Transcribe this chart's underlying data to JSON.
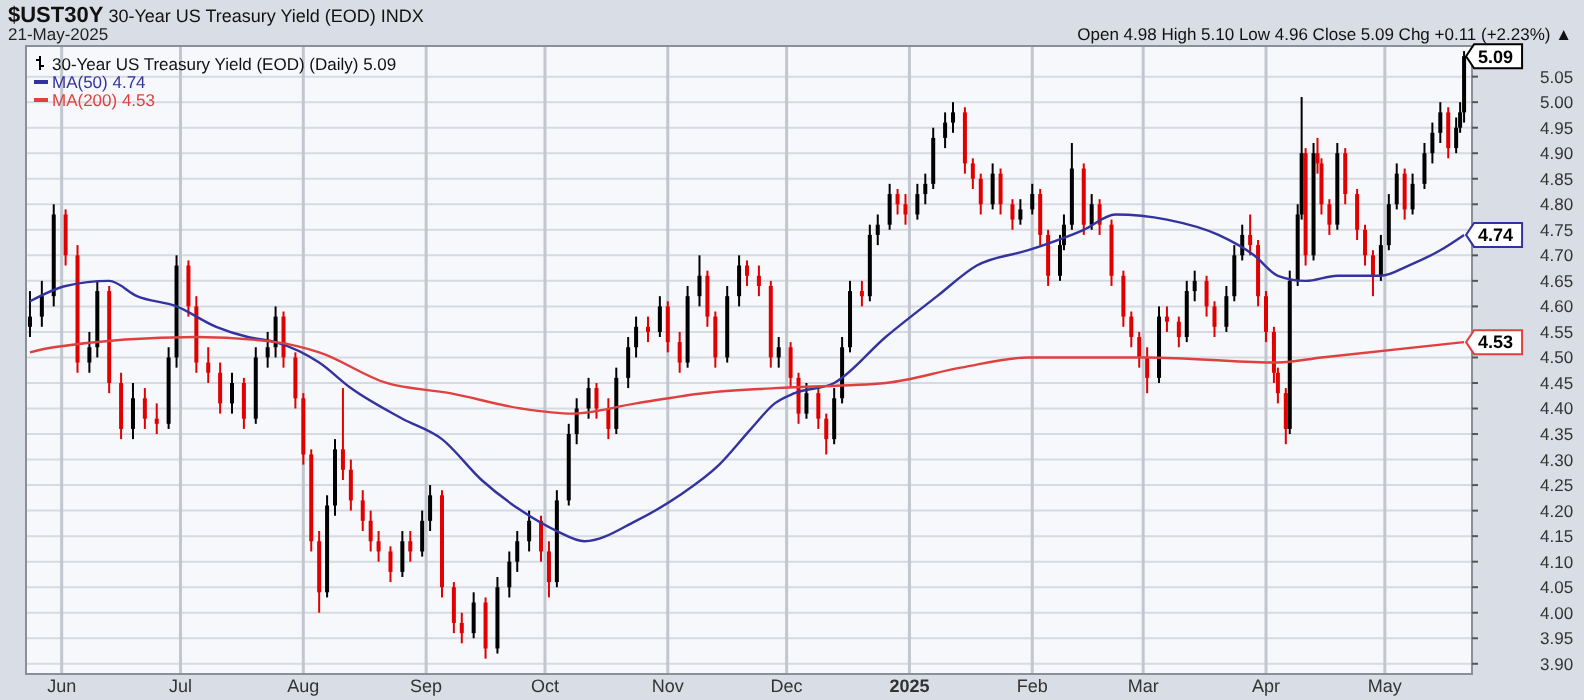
{
  "chart_data": {
    "type": "candlestick",
    "title": "$UST30Y 30-Year US Treasury Yield (EOD) INDX",
    "subtitle": "21-May-2025",
    "annotations": [
      "Open 4.98 High 5.10 Low 4.96 Close 5.09 Chg +0.11 (+2.23%) ▲",
      {
        "text": "5.09",
        "x": "2025-05-21",
        "y": 5.09
      },
      {
        "text": "4.74",
        "x": "2025-05-21",
        "y": 4.74
      },
      {
        "text": "4.53",
        "x": "2025-05-21",
        "y": 4.53
      }
    ],
    "xlim": [
      "2024-05-23",
      "2025-05-23"
    ],
    "xticks": [
      {
        "value": "2024-06-01",
        "label": "Jun"
      },
      {
        "value": "2024-07-01",
        "label": "Jul"
      },
      {
        "value": "2024-08-01",
        "label": "Aug"
      },
      {
        "value": "2024-09-01",
        "label": "Sep"
      },
      {
        "value": "2024-10-01",
        "label": "Oct"
      },
      {
        "value": "2024-11-01",
        "label": "Nov"
      },
      {
        "value": "2024-12-01",
        "label": "Dec"
      },
      {
        "value": "2025-01-01",
        "label": "2025"
      },
      {
        "value": "2025-02-01",
        "label": "Feb"
      },
      {
        "value": "2025-03-01",
        "label": "Mar"
      },
      {
        "value": "2025-04-01",
        "label": "Apr"
      },
      {
        "value": "2025-05-01",
        "label": "May"
      }
    ],
    "ylim": [
      3.88,
      5.11
    ],
    "yticks": [
      {
        "value": 3.9,
        "label": "3.90"
      },
      3.95,
      {
        "value": 4.0,
        "label": "4.00"
      },
      4.05,
      {
        "value": 4.1,
        "label": "4.10"
      },
      4.15,
      {
        "value": 4.2,
        "label": "4.20"
      },
      4.25,
      {
        "value": 4.3,
        "label": "4.30"
      },
      4.35,
      {
        "value": 4.4,
        "label": "4.40"
      },
      4.45,
      {
        "value": 4.5,
        "label": "4.50"
      },
      4.55,
      {
        "value": 4.6,
        "label": "4.60"
      },
      4.65,
      {
        "value": 4.7,
        "label": "4.70"
      },
      4.75,
      {
        "value": 4.8,
        "label": "4.80"
      },
      4.85,
      {
        "value": 4.9,
        "label": "4.90"
      },
      4.95,
      {
        "value": 5.0,
        "label": "5.00"
      },
      5.05
    ],
    "grid": true,
    "legend": "top left",
    "x": [
      "2024-05-24",
      "2024-05-27",
      "2024-05-30",
      "2024-06-02",
      "2024-06-05",
      "2024-06-08",
      "2024-06-10",
      "2024-06-13",
      "2024-06-16",
      "2024-06-19",
      "2024-06-22",
      "2024-06-25",
      "2024-06-28",
      "2024-06-30",
      "2024-07-03",
      "2024-07-05",
      "2024-07-08",
      "2024-07-11",
      "2024-07-14",
      "2024-07-17",
      "2024-07-20",
      "2024-07-23",
      "2024-07-25",
      "2024-07-27",
      "2024-07-30",
      "2024-08-01",
      "2024-08-03",
      "2024-08-05",
      "2024-08-07",
      "2024-08-09",
      "2024-08-11",
      "2024-08-13",
      "2024-08-16",
      "2024-08-18",
      "2024-08-20",
      "2024-08-23",
      "2024-08-26",
      "2024-08-28",
      "2024-08-31",
      "2024-09-02",
      "2024-09-05",
      "2024-09-08",
      "2024-09-10",
      "2024-09-13",
      "2024-09-16",
      "2024-09-19",
      "2024-09-22",
      "2024-09-24",
      "2024-09-27",
      "2024-09-30",
      "2024-10-02",
      "2024-10-04",
      "2024-10-07",
      "2024-10-09",
      "2024-10-12",
      "2024-10-14",
      "2024-10-17",
      "2024-10-19",
      "2024-10-22",
      "2024-10-24",
      "2024-10-27",
      "2024-10-30",
      "2024-11-01",
      "2024-11-04",
      "2024-11-06",
      "2024-11-09",
      "2024-11-11",
      "2024-11-13",
      "2024-11-16",
      "2024-11-19",
      "2024-11-21",
      "2024-11-24",
      "2024-11-27",
      "2024-11-29",
      "2024-12-02",
      "2024-12-04",
      "2024-12-06",
      "2024-12-09",
      "2024-12-11",
      "2024-12-13",
      "2024-12-15",
      "2024-12-17",
      "2024-12-20",
      "2024-12-22",
      "2024-12-24",
      "2024-12-27",
      "2024-12-29",
      "2024-12-31",
      "2025-01-03",
      "2025-01-05",
      "2025-01-07",
      "2025-01-10",
      "2025-01-12",
      "2025-01-15",
      "2025-01-17",
      "2025-01-19",
      "2025-01-22",
      "2025-01-24",
      "2025-01-27",
      "2025-01-29",
      "2025-02-01",
      "2025-02-03",
      "2025-02-05",
      "2025-02-08",
      "2025-02-09",
      "2025-02-11",
      "2025-02-14",
      "2025-02-16",
      "2025-02-18",
      "2025-02-21",
      "2025-02-24",
      "2025-02-26",
      "2025-02-28",
      "2025-03-02",
      "2025-03-05",
      "2025-03-07",
      "2025-03-10",
      "2025-03-12",
      "2025-03-14",
      "2025-03-17",
      "2025-03-19",
      "2025-03-22",
      "2025-03-24",
      "2025-03-26",
      "2025-03-28",
      "2025-03-30",
      "2025-04-01",
      "2025-04-03",
      "2025-04-04",
      "2025-04-06",
      "2025-04-07",
      "2025-04-09",
      "2025-04-10",
      "2025-04-11",
      "2025-04-13",
      "2025-04-14",
      "2025-04-15",
      "2025-04-17",
      "2025-04-19",
      "2025-04-21",
      "2025-04-24",
      "2025-04-26",
      "2025-04-28",
      "2025-04-30",
      "2025-05-02",
      "2025-05-04",
      "2025-05-06",
      "2025-05-08",
      "2025-05-11",
      "2025-05-13",
      "2025-05-15",
      "2025-05-17",
      "2025-05-19",
      "2025-05-20",
      "2025-05-21"
    ],
    "series": [
      {
        "name": "30-Year US Treasury Yield (EOD) (Daily) 5.09",
        "color": "#000000",
        "colors": [
          "#000000",
          "#000000",
          "#000000",
          "#e00000",
          "#e00000",
          "#000000",
          "#000000",
          "#e00000",
          "#e00000",
          "#000000",
          "#e00000",
          "#e00000",
          "#000000",
          "#000000",
          "#e00000",
          "#e00000",
          "#e00000",
          "#e00000",
          "#000000",
          "#e00000",
          "#000000",
          "#000000",
          "#000000",
          "#e00000",
          "#e00000",
          "#e00000",
          "#e00000",
          "#e00000",
          "#000000",
          "#000000",
          "#e00000",
          "#e00000",
          "#e00000",
          "#e00000",
          "#e00000",
          "#e00000",
          "#000000",
          "#e00000",
          "#000000",
          "#000000",
          "#e00000",
          "#e00000",
          "#e00000",
          "#000000",
          "#e00000",
          "#000000",
          "#000000",
          "#000000",
          "#000000",
          "#e00000",
          "#e00000",
          "#000000",
          "#000000",
          "#000000",
          "#000000",
          "#e00000",
          "#e00000",
          "#000000",
          "#000000",
          "#000000",
          "#e00000",
          "#000000",
          "#e00000",
          "#e00000",
          "#000000",
          "#000000",
          "#e00000",
          "#e00000",
          "#000000",
          "#000000",
          "#e00000",
          "#e00000",
          "#e00000",
          "#000000",
          "#e00000",
          "#e00000",
          "#000000",
          "#e00000",
          "#e00000",
          "#000000",
          "#000000",
          "#000000",
          "#e00000",
          "#000000",
          "#000000",
          "#000000",
          "#e00000",
          "#e00000",
          "#000000",
          "#000000",
          "#000000",
          "#000000",
          "#000000",
          "#e00000",
          "#e00000",
          "#e00000",
          "#000000",
          "#e00000",
          "#e00000",
          "#000000",
          "#000000",
          "#e00000",
          "#e00000",
          "#000000",
          "#000000",
          "#000000",
          "#e00000",
          "#000000",
          "#e00000",
          "#e00000",
          "#e00000",
          "#e00000",
          "#e00000",
          "#e00000",
          "#000000",
          "#e00000",
          "#e00000",
          "#000000",
          "#000000",
          "#e00000",
          "#e00000",
          "#000000",
          "#000000",
          "#000000",
          "#e00000",
          "#e00000",
          "#e00000",
          "#e00000",
          "#e00000",
          "#e00000",
          "#000000",
          "#000000",
          "#000000",
          "#e00000",
          "#000000",
          "#e00000",
          "#e00000",
          "#e00000",
          "#000000",
          "#e00000",
          "#e00000",
          "#e00000",
          "#e00000",
          "#000000",
          "#000000",
          "#000000",
          "#e00000",
          "#000000",
          "#000000",
          "#000000",
          "#000000",
          "#e00000",
          "#000000",
          "#000000",
          "#000000"
        ],
        "ohlc": [
          [
            4.56,
            4.63,
            4.54,
            4.58
          ],
          [
            4.58,
            4.65,
            4.56,
            4.62
          ],
          [
            4.62,
            4.8,
            4.6,
            4.78
          ],
          [
            4.78,
            4.79,
            4.68,
            4.7
          ],
          [
            4.7,
            4.72,
            4.47,
            4.49
          ],
          [
            4.49,
            4.55,
            4.47,
            4.52
          ],
          [
            4.52,
            4.65,
            4.5,
            4.63
          ],
          [
            4.63,
            4.64,
            4.43,
            4.45
          ],
          [
            4.45,
            4.47,
            4.34,
            4.36
          ],
          [
            4.36,
            4.45,
            4.34,
            4.42
          ],
          [
            4.42,
            4.44,
            4.36,
            4.38
          ],
          [
            4.38,
            4.41,
            4.35,
            4.37
          ],
          [
            4.37,
            4.52,
            4.36,
            4.5
          ],
          [
            4.5,
            4.7,
            4.48,
            4.68
          ],
          [
            4.68,
            4.69,
            4.58,
            4.6
          ],
          [
            4.6,
            4.62,
            4.47,
            4.49
          ],
          [
            4.49,
            4.52,
            4.45,
            4.47
          ],
          [
            4.47,
            4.49,
            4.39,
            4.41
          ],
          [
            4.41,
            4.47,
            4.39,
            4.45
          ],
          [
            4.45,
            4.46,
            4.36,
            4.38
          ],
          [
            4.38,
            4.52,
            4.37,
            4.5
          ],
          [
            4.5,
            4.55,
            4.48,
            4.52
          ],
          [
            4.52,
            4.6,
            4.5,
            4.58
          ],
          [
            4.58,
            4.59,
            4.48,
            4.5
          ],
          [
            4.5,
            4.51,
            4.4,
            4.42
          ],
          [
            4.42,
            4.43,
            4.29,
            4.31
          ],
          [
            4.31,
            4.32,
            4.12,
            4.14
          ],
          [
            4.14,
            4.16,
            4.0,
            4.04
          ],
          [
            4.04,
            4.23,
            4.03,
            4.21
          ],
          [
            4.21,
            4.34,
            4.19,
            4.32
          ],
          [
            4.32,
            4.44,
            4.26,
            4.28
          ],
          [
            4.28,
            4.3,
            4.2,
            4.22
          ],
          [
            4.22,
            4.24,
            4.16,
            4.18
          ],
          [
            4.18,
            4.2,
            4.12,
            4.14
          ],
          [
            4.14,
            4.16,
            4.1,
            4.12
          ],
          [
            4.12,
            4.13,
            4.06,
            4.08
          ],
          [
            4.08,
            4.16,
            4.07,
            4.14
          ],
          [
            4.14,
            4.16,
            4.1,
            4.12
          ],
          [
            4.12,
            4.2,
            4.11,
            4.18
          ],
          [
            4.18,
            4.25,
            4.16,
            4.23
          ],
          [
            4.23,
            4.24,
            4.03,
            4.05
          ],
          [
            4.05,
            4.06,
            3.96,
            3.98
          ],
          [
            3.98,
            4.0,
            3.94,
            3.96
          ],
          [
            3.96,
            4.04,
            3.95,
            4.02
          ],
          [
            4.02,
            4.03,
            3.91,
            3.93
          ],
          [
            3.93,
            4.07,
            3.92,
            4.05
          ],
          [
            4.05,
            4.12,
            4.03,
            4.1
          ],
          [
            4.1,
            4.16,
            4.08,
            4.14
          ],
          [
            4.14,
            4.2,
            4.12,
            4.18
          ],
          [
            4.18,
            4.19,
            4.1,
            4.12
          ],
          [
            4.12,
            4.14,
            4.03,
            4.06
          ],
          [
            4.06,
            4.24,
            4.05,
            4.22
          ],
          [
            4.22,
            4.37,
            4.21,
            4.35
          ],
          [
            4.35,
            4.42,
            4.33,
            4.4
          ],
          [
            4.4,
            4.46,
            4.38,
            4.44
          ],
          [
            4.44,
            4.45,
            4.38,
            4.4
          ],
          [
            4.4,
            4.42,
            4.34,
            4.36
          ],
          [
            4.36,
            4.48,
            4.35,
            4.46
          ],
          [
            4.46,
            4.54,
            4.44,
            4.52
          ],
          [
            4.52,
            4.58,
            4.5,
            4.56
          ],
          [
            4.56,
            4.58,
            4.53,
            4.55
          ],
          [
            4.55,
            4.62,
            4.54,
            4.6
          ],
          [
            4.6,
            4.61,
            4.51,
            4.53
          ],
          [
            4.53,
            4.55,
            4.47,
            4.49
          ],
          [
            4.49,
            4.64,
            4.48,
            4.62
          ],
          [
            4.62,
            4.7,
            4.6,
            4.66
          ],
          [
            4.66,
            4.67,
            4.56,
            4.58
          ],
          [
            4.58,
            4.59,
            4.48,
            4.5
          ],
          [
            4.5,
            4.64,
            4.49,
            4.62
          ],
          [
            4.62,
            4.7,
            4.6,
            4.68
          ],
          [
            4.68,
            4.69,
            4.64,
            4.66
          ],
          [
            4.66,
            4.68,
            4.62,
            4.64
          ],
          [
            4.64,
            4.65,
            4.48,
            4.5
          ],
          [
            4.5,
            4.54,
            4.48,
            4.52
          ],
          [
            4.52,
            4.53,
            4.44,
            4.46
          ],
          [
            4.46,
            4.47,
            4.37,
            4.39
          ],
          [
            4.39,
            4.45,
            4.38,
            4.43
          ],
          [
            4.43,
            4.44,
            4.36,
            4.38
          ],
          [
            4.38,
            4.39,
            4.31,
            4.34
          ],
          [
            4.34,
            4.44,
            4.33,
            4.42
          ],
          [
            4.42,
            4.54,
            4.41,
            4.52
          ],
          [
            4.52,
            4.65,
            4.51,
            4.63
          ],
          [
            4.63,
            4.65,
            4.6,
            4.62
          ],
          [
            4.62,
            4.76,
            4.61,
            4.74
          ],
          [
            4.74,
            4.78,
            4.72,
            4.76
          ],
          [
            4.76,
            4.84,
            4.75,
            4.82
          ],
          [
            4.82,
            4.83,
            4.78,
            4.8
          ],
          [
            4.8,
            4.82,
            4.76,
            4.78
          ],
          [
            4.78,
            4.84,
            4.77,
            4.82
          ],
          [
            4.82,
            4.86,
            4.8,
            4.84
          ],
          [
            4.84,
            4.95,
            4.83,
            4.93
          ],
          [
            4.93,
            4.98,
            4.91,
            4.96
          ],
          [
            4.96,
            5.0,
            4.94,
            4.98
          ],
          [
            4.98,
            4.99,
            4.86,
            4.88
          ],
          [
            4.88,
            4.89,
            4.83,
            4.85
          ],
          [
            4.85,
            4.86,
            4.78,
            4.8
          ],
          [
            4.8,
            4.88,
            4.79,
            4.86
          ],
          [
            4.86,
            4.87,
            4.78,
            4.8
          ],
          [
            4.8,
            4.81,
            4.75,
            4.77
          ],
          [
            4.77,
            4.81,
            4.76,
            4.79
          ],
          [
            4.79,
            4.84,
            4.78,
            4.82
          ],
          [
            4.82,
            4.83,
            4.72,
            4.74
          ],
          [
            4.74,
            4.75,
            4.64,
            4.66
          ],
          [
            4.66,
            4.74,
            4.65,
            4.72
          ],
          [
            4.72,
            4.78,
            4.71,
            4.76
          ],
          [
            4.76,
            4.92,
            4.75,
            4.87
          ],
          [
            4.87,
            4.88,
            4.74,
            4.76
          ],
          [
            4.76,
            4.82,
            4.75,
            4.8
          ],
          [
            4.8,
            4.81,
            4.74,
            4.76
          ],
          [
            4.76,
            4.77,
            4.64,
            4.66
          ],
          [
            4.66,
            4.67,
            4.56,
            4.58
          ],
          [
            4.58,
            4.59,
            4.52,
            4.54
          ],
          [
            4.54,
            4.55,
            4.48,
            4.5
          ],
          [
            4.5,
            4.52,
            4.43,
            4.46
          ],
          [
            4.46,
            4.6,
            4.45,
            4.58
          ],
          [
            4.58,
            4.6,
            4.55,
            4.57
          ],
          [
            4.57,
            4.58,
            4.52,
            4.54
          ],
          [
            4.54,
            4.65,
            4.53,
            4.63
          ],
          [
            4.63,
            4.67,
            4.61,
            4.65
          ],
          [
            4.65,
            4.66,
            4.58,
            4.6
          ],
          [
            4.6,
            4.61,
            4.54,
            4.56
          ],
          [
            4.56,
            4.64,
            4.55,
            4.62
          ],
          [
            4.62,
            4.72,
            4.61,
            4.7
          ],
          [
            4.7,
            4.76,
            4.69,
            4.74
          ],
          [
            4.74,
            4.78,
            4.7,
            4.72
          ],
          [
            4.72,
            4.73,
            4.6,
            4.62
          ],
          [
            4.62,
            4.63,
            4.53,
            4.55
          ],
          [
            4.55,
            4.56,
            4.45,
            4.47
          ],
          [
            4.47,
            4.48,
            4.41,
            4.43
          ],
          [
            4.43,
            4.44,
            4.33,
            4.36
          ],
          [
            4.36,
            4.67,
            4.35,
            4.65
          ],
          [
            4.65,
            4.8,
            4.64,
            4.78
          ],
          [
            4.78,
            5.01,
            4.77,
            4.9
          ],
          [
            4.9,
            4.91,
            4.68,
            4.7
          ],
          [
            4.7,
            4.92,
            4.69,
            4.9
          ],
          [
            4.9,
            4.93,
            4.86,
            4.88
          ],
          [
            4.88,
            4.89,
            4.78,
            4.8
          ],
          [
            4.8,
            4.81,
            4.74,
            4.76
          ],
          [
            4.76,
            4.92,
            4.75,
            4.9
          ],
          [
            4.9,
            4.91,
            4.8,
            4.82
          ],
          [
            4.82,
            4.83,
            4.73,
            4.75
          ],
          [
            4.75,
            4.76,
            4.68,
            4.7
          ],
          [
            4.7,
            4.71,
            4.62,
            4.66
          ],
          [
            4.66,
            4.74,
            4.65,
            4.72
          ],
          [
            4.72,
            4.82,
            4.71,
            4.8
          ],
          [
            4.8,
            4.88,
            4.79,
            4.86
          ],
          [
            4.86,
            4.87,
            4.77,
            4.79
          ],
          [
            4.79,
            4.86,
            4.78,
            4.84
          ],
          [
            4.84,
            4.92,
            4.83,
            4.9
          ],
          [
            4.9,
            4.96,
            4.88,
            4.94
          ],
          [
            4.94,
            5.0,
            4.92,
            4.98
          ],
          [
            4.98,
            4.99,
            4.89,
            4.91
          ],
          [
            4.91,
            4.97,
            4.9,
            4.95
          ],
          [
            4.95,
            5.0,
            4.94,
            4.98
          ],
          [
            4.98,
            5.1,
            4.96,
            5.09
          ]
        ]
      },
      {
        "type": "line",
        "name": "MA(50) 4.74",
        "color": "#3333a0",
        "x": [
          "2024-05-24",
          "2024-06-02",
          "2024-06-13",
          "2024-06-20",
          "2024-06-30",
          "2024-07-10",
          "2024-07-18",
          "2024-07-25",
          "2024-08-05",
          "2024-08-13",
          "2024-08-26",
          "2024-09-05",
          "2024-09-15",
          "2024-09-25",
          "2024-10-04",
          "2024-10-11",
          "2024-10-24",
          "2024-11-04",
          "2024-11-14",
          "2024-11-22",
          "2024-11-28",
          "2024-12-03",
          "2024-12-13",
          "2024-12-26",
          "2025-01-08",
          "2025-01-18",
          "2025-01-31",
          "2025-02-14",
          "2025-02-22",
          "2025-03-07",
          "2025-03-20",
          "2025-03-29",
          "2025-04-04",
          "2025-04-11",
          "2025-04-19",
          "2025-04-30",
          "2025-05-07",
          "2025-05-15",
          "2025-05-21"
        ],
        "values": [
          4.61,
          4.64,
          4.65,
          4.62,
          4.6,
          4.56,
          4.54,
          4.53,
          4.49,
          4.44,
          4.38,
          4.34,
          4.26,
          4.2,
          4.16,
          4.14,
          4.18,
          4.23,
          4.29,
          4.36,
          4.41,
          4.43,
          4.45,
          4.54,
          4.62,
          4.68,
          4.71,
          4.75,
          4.78,
          4.77,
          4.74,
          4.7,
          4.66,
          4.65,
          4.66,
          4.66,
          4.68,
          4.71,
          4.74
        ]
      },
      {
        "type": "line",
        "name": "MA(200) 4.53",
        "color": "#e04040",
        "x": [
          "2024-05-24",
          "2024-05-30",
          "2024-07-05",
          "2024-07-25",
          "2024-08-05",
          "2024-08-22",
          "2024-09-07",
          "2024-09-25",
          "2024-10-08",
          "2024-10-24",
          "2024-11-10",
          "2024-11-28",
          "2024-12-26",
          "2025-01-14",
          "2025-01-31",
          "2025-03-02",
          "2025-04-04",
          "2025-04-15",
          "2025-05-21"
        ],
        "values": [
          4.51,
          4.52,
          4.54,
          4.53,
          4.51,
          4.45,
          4.43,
          4.4,
          4.39,
          4.41,
          4.43,
          4.44,
          4.45,
          4.48,
          4.5,
          4.5,
          4.49,
          4.5,
          4.53
        ]
      }
    ]
  }
}
